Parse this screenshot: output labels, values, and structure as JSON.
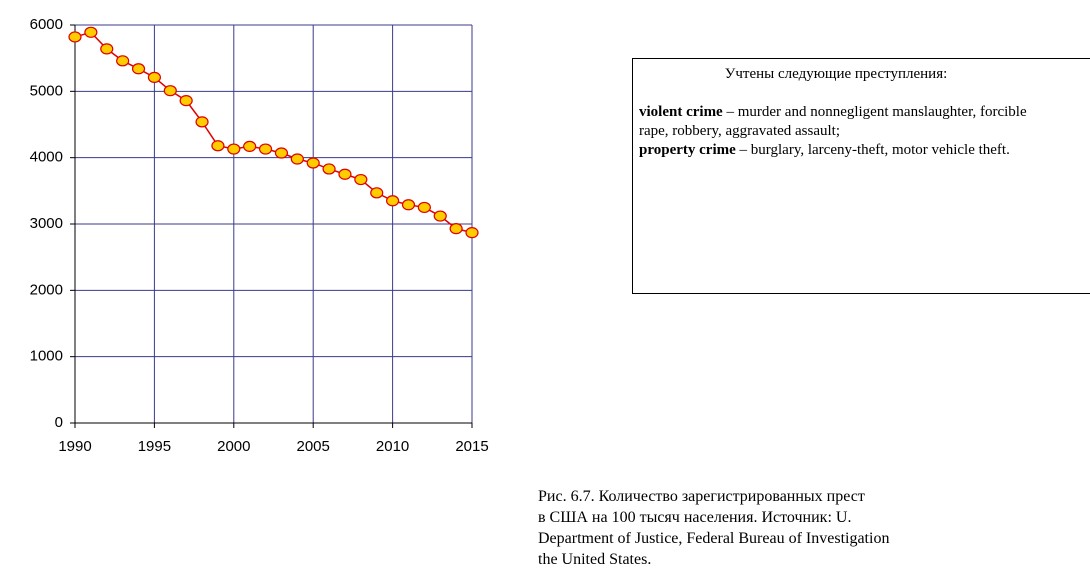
{
  "chart_data": {
    "type": "line",
    "x": [
      1990,
      1991,
      1992,
      1993,
      1994,
      1995,
      1996,
      1997,
      1998,
      1999,
      2000,
      2001,
      2002,
      2003,
      2004,
      2005,
      2006,
      2007,
      2008,
      2009,
      2010,
      2011,
      2012,
      2013,
      2014,
      2015
    ],
    "series": [
      {
        "color": "#e00000",
        "marker_color": "#ffcc00",
        "values": [
          5820,
          5890,
          5640,
          5460,
          5340,
          5210,
          5010,
          4860,
          4540,
          4180,
          4130,
          4170,
          4130,
          4070,
          3980,
          3920,
          3830,
          3750,
          3670,
          3470,
          3350,
          3290,
          3250,
          3120,
          2930,
          2870
        ]
      }
    ],
    "xlim": [
      1990,
      2015
    ],
    "xticks": [
      1990,
      1995,
      2000,
      2005,
      2010,
      2015
    ],
    "ylim": [
      0,
      6000
    ],
    "yticks": [
      0,
      1000,
      2000,
      3000,
      4000,
      5000,
      6000
    ],
    "grid": true
  },
  "text_box": {
    "heading": "Учтены следующие преступления:",
    "items": [
      {
        "term": "violent crime",
        "definition": " – murder and nonnegligent manslaughter, forcible rape, robbery, aggravated assault;"
      },
      {
        "term": "property crime",
        "definition": " – burglary, larceny-theft, motor vehicle theft."
      }
    ]
  },
  "caption": [
    "Рис. 6.7. Количество зарегистрированных прест",
    "в США  на 100 тысяч населения. Источник:  U.",
    "Department of Justice, Federal Bureau of Investigation",
    "the United States."
  ]
}
